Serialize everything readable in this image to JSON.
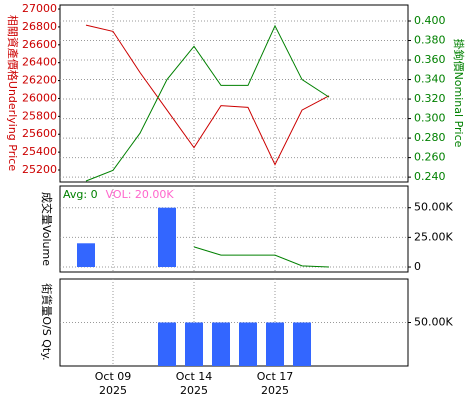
{
  "chart_data": [
    {
      "type": "line",
      "ylabel": "相關資產價格Underlying Price",
      "y2label": "掛鉤價Nominal Price",
      "series": [
        {
          "color": "#cc0000",
          "values": [
            26820,
            26750,
            26290,
            25870,
            25450,
            25920,
            25900,
            25260,
            25870,
            26030
          ]
        },
        {
          "color": "#008000",
          "axis": "y2",
          "values": [
            0.236,
            0.247,
            0.285,
            0.34,
            0.374,
            0.334,
            0.334,
            0.395,
            0.34,
            0.322
          ]
        }
      ],
      "ylim": [
        25066,
        27045
      ],
      "yticks": [
        25200,
        25400,
        25600,
        25800,
        26000,
        26200,
        26400,
        26600,
        26800,
        27000
      ],
      "y2lim": [
        0.235,
        0.4164
      ],
      "y2ticks": [
        {
          "value": 0.24,
          "label": "0.240"
        },
        {
          "value": 0.26,
          "label": "0.260"
        },
        {
          "value": 0.28,
          "label": "0.280"
        },
        {
          "value": 0.3,
          "label": "0.300"
        },
        {
          "value": 0.32,
          "label": "0.320"
        },
        {
          "value": 0.34,
          "label": "0.340"
        },
        {
          "value": 0.36,
          "label": "0.360"
        },
        {
          "value": 0.38,
          "label": "0.380"
        },
        {
          "value": 0.4,
          "label": "0.400"
        }
      ],
      "grid": true
    },
    {
      "type": "bar",
      "ylabel": "成交量Volume",
      "series": [
        {
          "name": "Avg: 0",
          "type": "line",
          "color": "#008000",
          "values": [
            null,
            null,
            null,
            null,
            17000,
            10000,
            10000,
            10000,
            1000,
            0
          ]
        },
        {
          "name": "VOL: 20.00K",
          "color": "#3366ff",
          "legend_color": "#ff66cc",
          "values": [
            20000,
            null,
            null,
            50000,
            null,
            null,
            null,
            null,
            null,
            null
          ]
        }
      ],
      "ylim": [
        -4200,
        68300
      ],
      "y2ticks": [
        0,
        {
          "value": 25000,
          "label": "25.00K"
        },
        {
          "value": 50000,
          "label": "50.00K"
        }
      ],
      "grid": true
    },
    {
      "type": "bar",
      "ylabel": "街貨量O/S Qty.",
      "series": [
        {
          "color": "#3366ff",
          "values": [
            null,
            null,
            null,
            50000,
            50000,
            50000,
            50000,
            50000,
            50000,
            null
          ]
        }
      ],
      "ylim": [
        0,
        100000
      ],
      "y2ticks": [
        {
          "value": 50000,
          "label": "50.00K"
        }
      ],
      "grid": true,
      "categories": [
        null,
        "Oct 09",
        null,
        null,
        "Oct 14",
        null,
        null,
        "Oct 17",
        null,
        null
      ],
      "year": "2025"
    }
  ]
}
